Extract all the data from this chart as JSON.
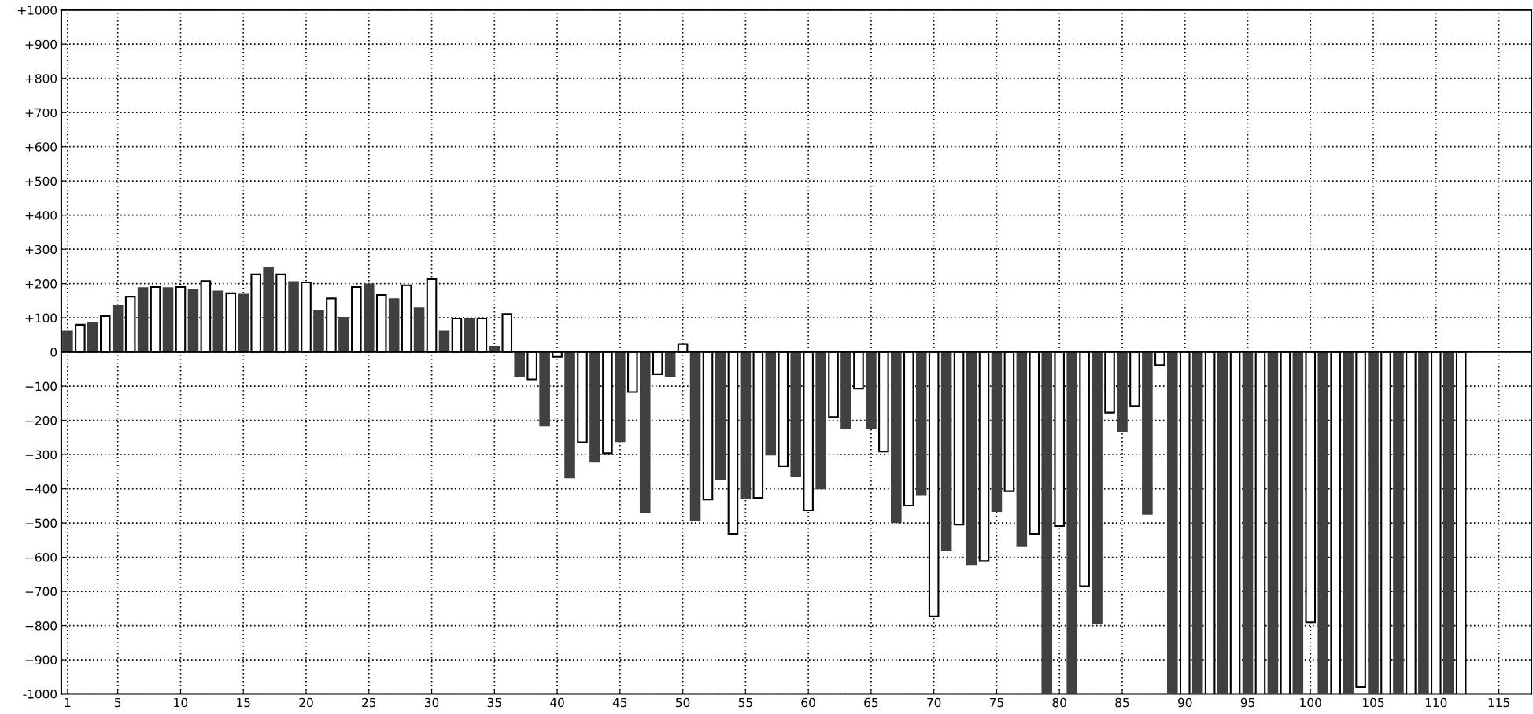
{
  "chart_data": {
    "type": "bar",
    "series": [
      {
        "color": "#404040",
        "x": [
          1,
          3,
          5,
          7,
          9,
          11,
          13,
          15,
          17,
          19,
          21,
          23,
          25,
          27,
          29,
          31,
          33,
          35,
          37,
          39,
          41,
          43,
          45,
          47,
          49,
          51,
          53,
          55,
          57,
          59,
          61,
          63,
          65,
          67,
          69,
          71,
          73,
          75,
          77,
          79,
          81,
          83,
          85,
          87,
          89,
          91,
          93,
          95,
          97,
          99,
          101,
          103,
          105,
          107,
          109,
          111
        ],
        "values": [
          60,
          85,
          135,
          187,
          187,
          182,
          177,
          168,
          245,
          205,
          121,
          100,
          198,
          155,
          127,
          60,
          97,
          15,
          -71,
          -215,
          -367,
          -321,
          -261,
          -469,
          -71,
          -492,
          -372,
          -428,
          -300,
          -363,
          -399,
          -224,
          -224,
          -498,
          -418,
          -580,
          -622,
          -465,
          -566,
          -1000,
          -1000,
          -793,
          -233,
          -474,
          -1000,
          -1000,
          -1000,
          -1000,
          -1000,
          -1000,
          -1000,
          -1000,
          -1000,
          -1000,
          -1000,
          -1000
        ]
      },
      {
        "color": "#ffffff",
        "x": [
          2,
          4,
          6,
          8,
          10,
          12,
          14,
          16,
          18,
          20,
          22,
          24,
          26,
          28,
          30,
          32,
          34,
          36,
          38,
          40,
          42,
          44,
          46,
          48,
          50,
          52,
          54,
          56,
          58,
          60,
          62,
          64,
          66,
          68,
          70,
          72,
          74,
          76,
          78,
          80,
          82,
          84,
          86,
          88,
          90,
          92,
          94,
          96,
          98,
          100,
          102,
          104,
          106,
          108,
          110,
          112
        ],
        "values": [
          80,
          105,
          162,
          190,
          190,
          208,
          172,
          227,
          227,
          204,
          157,
          190,
          167,
          195,
          213,
          98,
          98,
          111,
          -80,
          -14,
          -264,
          -296,
          -117,
          -65,
          23,
          -431,
          -532,
          -426,
          -334,
          -463,
          -190,
          -107,
          -291,
          -449,
          -773,
          -505,
          -611,
          -407,
          -532,
          -509,
          -685,
          -177,
          -158,
          -38,
          -1000,
          -1000,
          -1000,
          -1000,
          -1000,
          -790,
          -1000,
          -980,
          -1000,
          -1000,
          -1000,
          -1000
        ]
      }
    ],
    "xlim": [
      0.5,
      117.6
    ],
    "xticks": [
      1,
      5,
      10,
      15,
      20,
      25,
      30,
      35,
      40,
      45,
      50,
      55,
      60,
      65,
      70,
      75,
      80,
      85,
      90,
      95,
      100,
      105,
      110,
      115
    ],
    "ylim": [
      -1000,
      1000
    ],
    "yticks": [
      {
        "value": -1000,
        "label": "-1000"
      },
      {
        "value": -900,
        "label": "−900"
      },
      {
        "value": -800,
        "label": "−800"
      },
      {
        "value": -700,
        "label": "−700"
      },
      {
        "value": -600,
        "label": "−600"
      },
      {
        "value": -500,
        "label": "−500"
      },
      {
        "value": -400,
        "label": "−400"
      },
      {
        "value": -300,
        "label": "−300"
      },
      {
        "value": -200,
        "label": "−200"
      },
      {
        "value": -100,
        "label": "−100"
      },
      {
        "value": 0,
        "label": "0"
      },
      {
        "value": 100,
        "label": "+100"
      },
      {
        "value": 200,
        "label": "+200"
      },
      {
        "value": 300,
        "label": "+300"
      },
      {
        "value": 400,
        "label": "+400"
      },
      {
        "value": 500,
        "label": "+500"
      },
      {
        "value": 600,
        "label": "+600"
      },
      {
        "value": 700,
        "label": "+700"
      },
      {
        "value": 800,
        "label": "+800"
      },
      {
        "value": 900,
        "label": "+900"
      },
      {
        "value": 1000,
        "label": "+1000"
      }
    ],
    "ref_lines": [
      {
        "axis": "y",
        "value": 0,
        "color": "#000000",
        "line_style": "solid"
      }
    ],
    "grid": true
  }
}
